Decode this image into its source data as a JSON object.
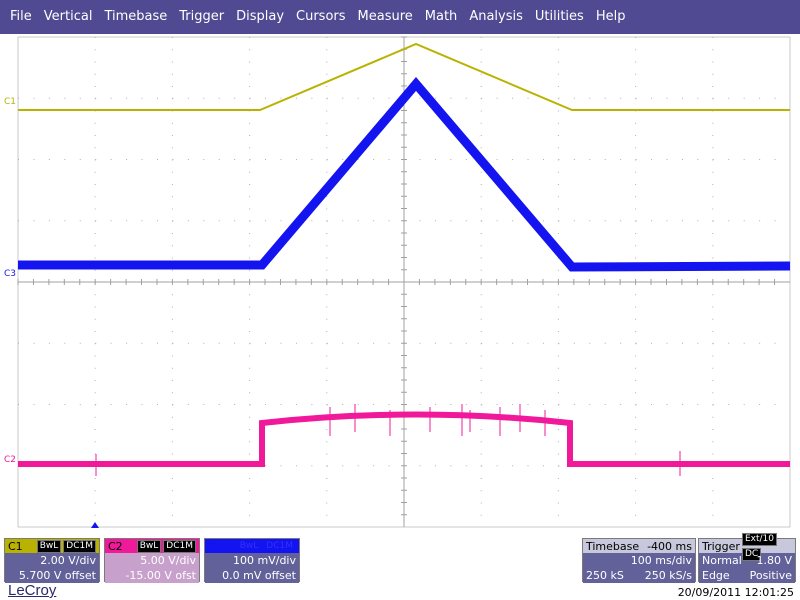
{
  "menu": [
    "File",
    "Vertical",
    "Timebase",
    "Trigger",
    "Display",
    "Cursors",
    "Measure",
    "Math",
    "Analysis",
    "Utilities",
    "Help"
  ],
  "markers": {
    "c1": "C1",
    "c2": "C2",
    "c3": "C3"
  },
  "channels": {
    "c1": {
      "name": "C1",
      "bw": "BwL",
      "coupling": "DC1M",
      "vdiv": "2.00 V/div",
      "offset": "5.700 V offset",
      "color": "#bab200"
    },
    "c2": {
      "name": "C2",
      "bw": "BwL",
      "coupling": "DC1M",
      "vdiv": "5.00 V/div",
      "offset": "-15.00 V ofst",
      "color": "#f0199a"
    },
    "c3": {
      "name": "C3",
      "bw": "BwL",
      "coupling": "DC1M",
      "vdiv": "100 mV/div",
      "offset": "0.0 mV offset",
      "color": "#1414f0"
    }
  },
  "timebase": {
    "label": "Timebase",
    "delay": "-400 ms",
    "tdiv": "100 ms/div",
    "samples": "250 kS",
    "rate": "250 kS/s"
  },
  "trigger": {
    "label": "Trigger",
    "source": "Ext/10",
    "coupling": "DC",
    "mode": "Normal",
    "level": "1.80 V",
    "type": "Edge",
    "slope": "Positive"
  },
  "brand": "LeCroy",
  "datetime": "20/09/2011 12:01:25"
}
